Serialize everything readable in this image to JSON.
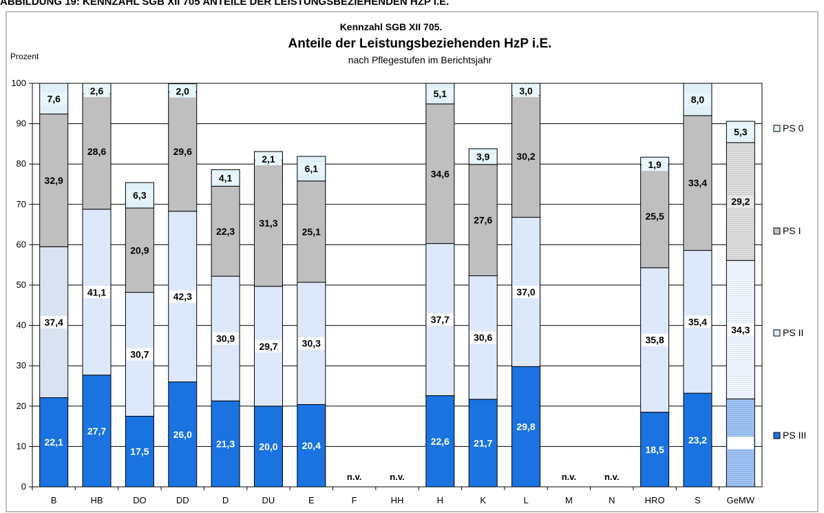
{
  "figure_heading": "ABBILDUNG 19:      KENNZAHL SGB XII 705 ANTEILE DER LEISTUNGSBEZIEHENDEN HZP I.E.",
  "colors": {
    "ps0": "#dff0f8",
    "ps1": "#bfbfbf",
    "ps2": "#dde8fb",
    "ps3": "#1a73e0",
    "ps2_b": "#d9e2f0",
    "border": "#000000",
    "frame": "#808080",
    "plot_bg": "#ffffff"
  },
  "chart_data": {
    "type": "bar",
    "stacked": true,
    "title": "Kennzahl SGB XII 705.",
    "subtitle": "Anteile der Leistungsbeziehenden HzP i.E.",
    "subtitle2": "nach Pflegestufen im Berichtsjahr",
    "ylabel": "Prozent",
    "xlabel": "",
    "ylim": [
      0,
      100
    ],
    "yticks": [
      0,
      10,
      20,
      30,
      40,
      50,
      60,
      70,
      80,
      90,
      100
    ],
    "grid": true,
    "legend_position": "right",
    "categories": [
      "B",
      "HB",
      "DO",
      "DD",
      "D",
      "DU",
      "E",
      "F",
      "HH",
      "H",
      "K",
      "L",
      "M",
      "N",
      "HRO",
      "S",
      "GeMW"
    ],
    "missing_label": "n.v.",
    "missing": [
      "F",
      "HH",
      "M",
      "N"
    ],
    "series": [
      {
        "name": "PS III",
        "key": "ps3",
        "values": [
          22.1,
          27.7,
          17.5,
          26.0,
          21.3,
          20.0,
          20.4,
          null,
          null,
          22.6,
          21.7,
          29.8,
          null,
          null,
          18.5,
          23.2,
          21.8
        ],
        "labels": [
          "22,1",
          "27,7",
          "17,5",
          "26,0",
          "21,3",
          "20,0",
          "20,4",
          "",
          "",
          "22,6",
          "21,7",
          "29,8",
          "",
          "",
          "18,5",
          "23,2",
          "21,8"
        ]
      },
      {
        "name": "PS II",
        "key": "ps2",
        "values": [
          37.4,
          41.1,
          30.7,
          42.3,
          30.9,
          29.7,
          30.3,
          null,
          null,
          37.7,
          30.6,
          37.0,
          null,
          null,
          35.8,
          35.4,
          34.3
        ],
        "labels": [
          "37,4",
          "41,1",
          "30,7",
          "42,3",
          "30,9",
          "29,7",
          "30,3",
          "",
          "",
          "37,7",
          "30,6",
          "37,0",
          "",
          "",
          "35,8",
          "35,4",
          "34,3"
        ]
      },
      {
        "name": "PS I",
        "key": "ps1",
        "values": [
          32.9,
          28.6,
          20.9,
          29.6,
          22.3,
          31.3,
          25.1,
          null,
          null,
          34.6,
          27.6,
          30.2,
          null,
          null,
          25.5,
          33.4,
          29.2
        ],
        "labels": [
          "32,9",
          "28,6",
          "20,9",
          "29,6",
          "22,3",
          "31,3",
          "25,1",
          "",
          "",
          "34,6",
          "27,6",
          "30,2",
          "",
          "",
          "25,5",
          "33,4",
          "29,2"
        ]
      },
      {
        "name": "PS 0",
        "key": "ps0",
        "values": [
          7.6,
          2.6,
          6.3,
          2.0,
          4.1,
          2.1,
          6.1,
          null,
          null,
          5.1,
          3.9,
          3.0,
          null,
          null,
          1.9,
          8.0,
          5.3
        ],
        "labels": [
          "7,6",
          "2,6",
          "6,3",
          "2,0",
          "4,1",
          "2,1",
          "6,1",
          "",
          "",
          "5,1",
          "3,9",
          "3,0",
          "",
          "",
          "1,9",
          "8,0",
          "5,3"
        ]
      }
    ],
    "legend": [
      "PS 0",
      "PS I",
      "PS II",
      "PS III"
    ]
  }
}
